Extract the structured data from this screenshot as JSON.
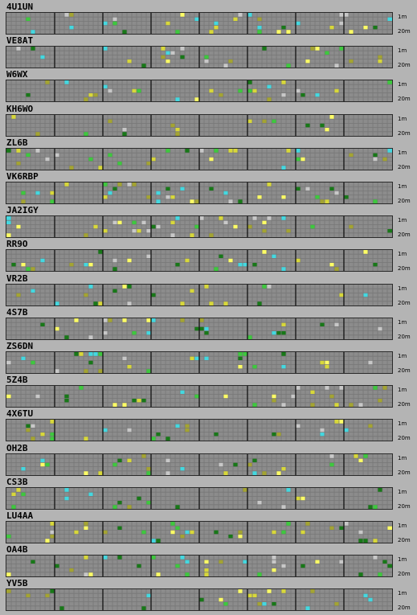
{
  "band_labels": {
    "top": "1m",
    "bottom": "20m"
  },
  "grid": {
    "columns": 80,
    "rows": 5,
    "hour_blocks": 8
  },
  "colors": {
    "background": "#b4b4b4",
    "cell_empty": "#8c8c8c",
    "cell_line": "#777777",
    "divider": "#1a1a1a",
    "cyan": "#44d8e0",
    "yellow": "#d8d83a",
    "bright_yellow": "#ffff66",
    "green": "#3ec83e",
    "dark_green": "#187818",
    "olive": "#a4a432",
    "light_gray": "#c8c8c8"
  },
  "stations": [
    {
      "callsign": "4U1UN",
      "seed": 11
    },
    {
      "callsign": "VE8AT",
      "seed": 23
    },
    {
      "callsign": "W6WX",
      "seed": 37
    },
    {
      "callsign": "KH6WO",
      "seed": 41
    },
    {
      "callsign": "ZL6B",
      "seed": 53
    },
    {
      "callsign": "VK6RBP",
      "seed": 67
    },
    {
      "callsign": "JA2IGY",
      "seed": 71
    },
    {
      "callsign": "RR9O",
      "seed": 83
    },
    {
      "callsign": "VR2B",
      "seed": 97
    },
    {
      "callsign": "4S7B",
      "seed": 101
    },
    {
      "callsign": "ZS6DN",
      "seed": 113
    },
    {
      "callsign": "5Z4B",
      "seed": 127
    },
    {
      "callsign": "4X6TU",
      "seed": 131
    },
    {
      "callsign": "OH2B",
      "seed": 149
    },
    {
      "callsign": "CS3B",
      "seed": 151
    },
    {
      "callsign": "LU4AA",
      "seed": 163
    },
    {
      "callsign": "OA4B",
      "seed": 173
    },
    {
      "callsign": "YV5B",
      "seed": 181
    }
  ]
}
